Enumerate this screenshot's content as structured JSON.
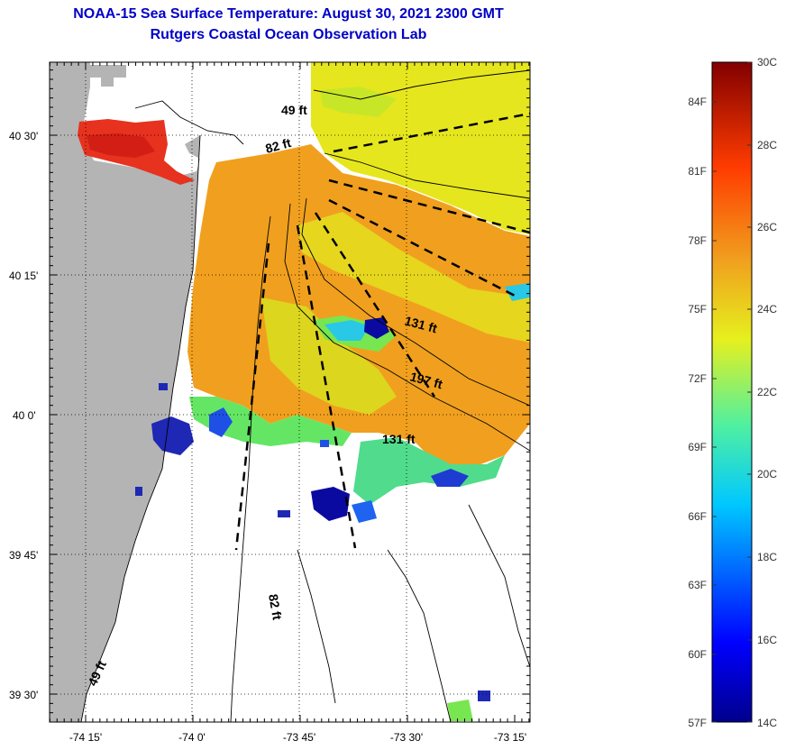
{
  "title": {
    "line1": "NOAA-15 Sea Surface Temperature:  August 30, 2021 2300 GMT",
    "line2": "Rutgers Coastal Ocean Observation Lab"
  },
  "axes": {
    "lat_labels": [
      "40 30'",
      "40 15'",
      "40 0'",
      "39 45'",
      "39 30'"
    ],
    "lon_labels": [
      "-74 15'",
      "-74 0'",
      "-73 45'",
      "-73 30'",
      "-73 15'"
    ]
  },
  "contour_labels": [
    "49 ft",
    "82 ft",
    "131 ft",
    "197 ft",
    "131 ft",
    "82 ft",
    "49 ft"
  ],
  "colorbar": {
    "fahrenheit": [
      "84F",
      "81F",
      "78F",
      "75F",
      "72F",
      "69F",
      "66F",
      "63F",
      "60F",
      "57F"
    ],
    "celsius": [
      "30C",
      "28C",
      "26C",
      "24C",
      "22C",
      "20C",
      "18C",
      "16C",
      "14C"
    ]
  },
  "colors": {
    "land": "#b4b4b4",
    "title": "#0000c8",
    "warm": "#f0a01e",
    "yellow": "#e6e61e",
    "hot": "#e6321e",
    "cool": "#1e28b4"
  }
}
